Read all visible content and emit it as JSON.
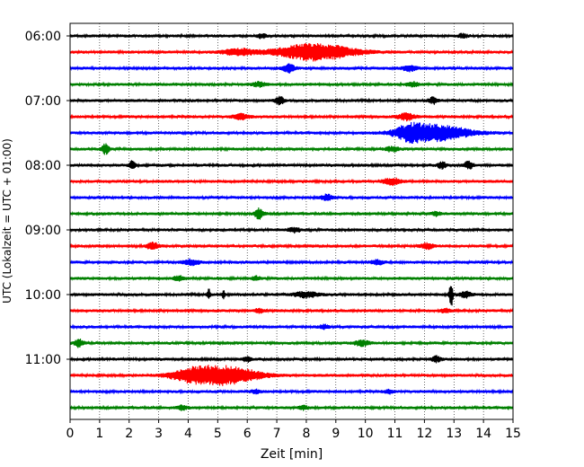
{
  "chart_data": {
    "type": "line",
    "title": "",
    "xlabel": "Zeit  [min]",
    "ylabel": "UTC (Lokalzeit = UTC + 01:00)",
    "xlim": [
      0,
      15
    ],
    "x_ticks": [
      "0",
      "1",
      "2",
      "3",
      "4",
      "5",
      "6",
      "7",
      "8",
      "9",
      "10",
      "11",
      "12",
      "13",
      "14",
      "15"
    ],
    "y_ticks": [
      "06:00",
      "07:00",
      "08:00",
      "09:00",
      "10:00",
      "11:00"
    ],
    "grid": "vertical dotted at each minute",
    "traces_per_hour": 4,
    "trace_minutes": 15,
    "colors": [
      "#000000",
      "#ff0000",
      "#0000ff",
      "#008000"
    ],
    "traces": [
      {
        "start": "06:00",
        "events": [
          {
            "t": 6.5,
            "amp": 0.25,
            "dur": 0.3
          },
          {
            "t": 13.3,
            "amp": 0.2,
            "dur": 0.3
          }
        ]
      },
      {
        "start": "06:15",
        "events": [
          {
            "t": 5.7,
            "amp": 0.35,
            "dur": 1.0
          },
          {
            "t": 8.3,
            "amp": 0.9,
            "dur": 2.6
          }
        ]
      },
      {
        "start": "06:30",
        "events": [
          {
            "t": 7.4,
            "amp": 0.45,
            "dur": 0.4
          },
          {
            "t": 11.5,
            "amp": 0.3,
            "dur": 0.5
          }
        ]
      },
      {
        "start": "06:45",
        "events": [
          {
            "t": 6.4,
            "amp": 0.25,
            "dur": 0.4
          },
          {
            "t": 11.6,
            "amp": 0.25,
            "dur": 0.4
          }
        ]
      },
      {
        "start": "07:00",
        "events": [
          {
            "t": 7.1,
            "amp": 0.4,
            "dur": 0.3
          },
          {
            "t": 12.3,
            "amp": 0.35,
            "dur": 0.3
          }
        ]
      },
      {
        "start": "07:15",
        "events": [
          {
            "t": 5.8,
            "amp": 0.3,
            "dur": 0.5
          },
          {
            "t": 11.4,
            "amp": 0.35,
            "dur": 0.6
          }
        ]
      },
      {
        "start": "07:30",
        "events": [
          {
            "t": 11.5,
            "amp": 0.6,
            "dur": 1.0
          },
          {
            "t": 12.4,
            "amp": 0.85,
            "dur": 2.2
          }
        ]
      },
      {
        "start": "07:45",
        "events": [
          {
            "t": 1.2,
            "amp": 0.55,
            "dur": 0.25
          },
          {
            "t": 10.9,
            "amp": 0.25,
            "dur": 0.4
          }
        ]
      },
      {
        "start": "08:00",
        "events": [
          {
            "t": 2.1,
            "amp": 0.55,
            "dur": 0.2
          },
          {
            "t": 12.6,
            "amp": 0.35,
            "dur": 0.3
          },
          {
            "t": 13.5,
            "amp": 0.4,
            "dur": 0.3
          }
        ]
      },
      {
        "start": "08:15",
        "events": [
          {
            "t": 10.9,
            "amp": 0.35,
            "dur": 0.6
          }
        ]
      },
      {
        "start": "08:30",
        "events": [
          {
            "t": 8.7,
            "amp": 0.3,
            "dur": 0.4
          }
        ]
      },
      {
        "start": "08:45",
        "events": [
          {
            "t": 6.4,
            "amp": 0.55,
            "dur": 0.3
          },
          {
            "t": 12.4,
            "amp": 0.2,
            "dur": 0.3
          }
        ]
      },
      {
        "start": "09:00",
        "events": [
          {
            "t": 7.6,
            "amp": 0.25,
            "dur": 0.4
          }
        ]
      },
      {
        "start": "09:15",
        "events": [
          {
            "t": 2.8,
            "amp": 0.35,
            "dur": 0.4
          },
          {
            "t": 12.1,
            "amp": 0.3,
            "dur": 0.4
          }
        ]
      },
      {
        "start": "09:30",
        "events": [
          {
            "t": 4.1,
            "amp": 0.3,
            "dur": 0.5
          },
          {
            "t": 10.4,
            "amp": 0.25,
            "dur": 0.4
          }
        ]
      },
      {
        "start": "09:45",
        "events": [
          {
            "t": 3.7,
            "amp": 0.25,
            "dur": 0.4
          },
          {
            "t": 6.3,
            "amp": 0.2,
            "dur": 0.3
          }
        ]
      },
      {
        "start": "10:00",
        "events": [
          {
            "t": 4.7,
            "amp": 0.6,
            "dur": 0.1
          },
          {
            "t": 5.2,
            "amp": 0.4,
            "dur": 0.1
          },
          {
            "t": 8.0,
            "amp": 0.3,
            "dur": 0.8
          },
          {
            "t": 12.9,
            "amp": 1.5,
            "dur": 0.12
          },
          {
            "t": 13.4,
            "amp": 0.3,
            "dur": 0.4
          }
        ]
      },
      {
        "start": "10:15",
        "events": [
          {
            "t": 6.4,
            "amp": 0.2,
            "dur": 0.3
          },
          {
            "t": 12.7,
            "amp": 0.2,
            "dur": 0.3
          }
        ]
      },
      {
        "start": "10:30",
        "events": [
          {
            "t": 8.6,
            "amp": 0.2,
            "dur": 0.3
          }
        ]
      },
      {
        "start": "10:45",
        "events": [
          {
            "t": 0.3,
            "amp": 0.4,
            "dur": 0.3
          },
          {
            "t": 9.9,
            "amp": 0.3,
            "dur": 0.5
          }
        ]
      },
      {
        "start": "11:00",
        "events": [
          {
            "t": 6.0,
            "amp": 0.25,
            "dur": 0.3
          },
          {
            "t": 12.4,
            "amp": 0.3,
            "dur": 0.3
          }
        ]
      },
      {
        "start": "11:15",
        "events": [
          {
            "t": 4.2,
            "amp": 0.7,
            "dur": 1.6
          },
          {
            "t": 5.4,
            "amp": 0.9,
            "dur": 2.0
          }
        ]
      },
      {
        "start": "11:30",
        "events": [
          {
            "t": 6.3,
            "amp": 0.2,
            "dur": 0.3
          },
          {
            "t": 10.8,
            "amp": 0.2,
            "dur": 0.3
          }
        ]
      },
      {
        "start": "11:45",
        "events": [
          {
            "t": 3.8,
            "amp": 0.25,
            "dur": 0.3
          },
          {
            "t": 7.9,
            "amp": 0.2,
            "dur": 0.3
          }
        ]
      }
    ]
  }
}
